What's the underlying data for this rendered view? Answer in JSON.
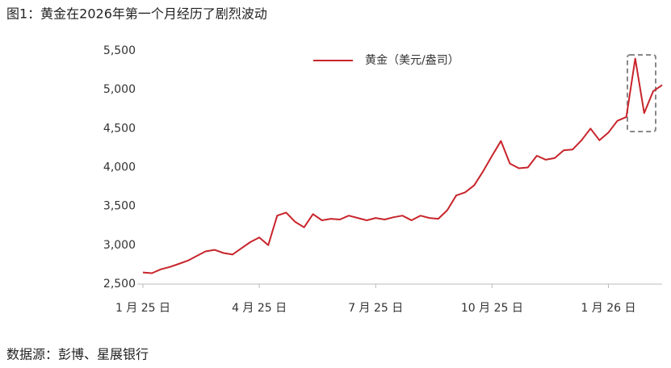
{
  "chart_data": {
    "type": "line",
    "title": "图1：黄金在2026年第一个月经历了剧烈波动",
    "source": "数据源：彭博、星展银行",
    "categories": [
      "1 月 25 日",
      null,
      null,
      null,
      null,
      null,
      null,
      null,
      null,
      null,
      null,
      null,
      null,
      "4 月 25 日",
      null,
      null,
      null,
      null,
      null,
      null,
      null,
      null,
      null,
      null,
      null,
      null,
      "7 月 25 日",
      null,
      null,
      null,
      null,
      null,
      null,
      null,
      null,
      null,
      null,
      null,
      null,
      "10 月 25 日",
      null,
      null,
      null,
      null,
      null,
      null,
      null,
      null,
      null,
      null,
      null,
      null,
      "1 月 26 日",
      null,
      null,
      null,
      null,
      null,
      null
    ],
    "series": [
      {
        "name": "黄金（美元/盎司）",
        "color": "#c8242b",
        "values": [
          2650,
          2640,
          2690,
          2720,
          2760,
          2800,
          2860,
          2920,
          2940,
          2900,
          2880,
          2960,
          3040,
          3100,
          3000,
          3380,
          3420,
          3300,
          3230,
          3400,
          3320,
          3340,
          3330,
          3380,
          3350,
          3320,
          3350,
          3330,
          3360,
          3380,
          3320,
          3380,
          3350,
          3340,
          3450,
          3640,
          3680,
          3770,
          3950,
          4150,
          4340,
          4050,
          3990,
          4000,
          4150,
          4100,
          4120,
          4220,
          4230,
          4350,
          4500,
          4350,
          4450,
          4600,
          4650,
          5400,
          4700,
          4980,
          5060
        ]
      }
    ],
    "ylim": [
      2500,
      5500
    ],
    "yticks": [
      {
        "value": 2500,
        "label": "2,500"
      },
      {
        "value": 3000,
        "label": "3,000"
      },
      {
        "value": 3500,
        "label": "3,500"
      },
      {
        "value": 4000,
        "label": "4,000"
      },
      {
        "value": 4500,
        "label": "4,500"
      },
      {
        "value": 5000,
        "label": "5,000"
      },
      {
        "value": 5500,
        "label": "5,500"
      }
    ],
    "grid": false
  }
}
